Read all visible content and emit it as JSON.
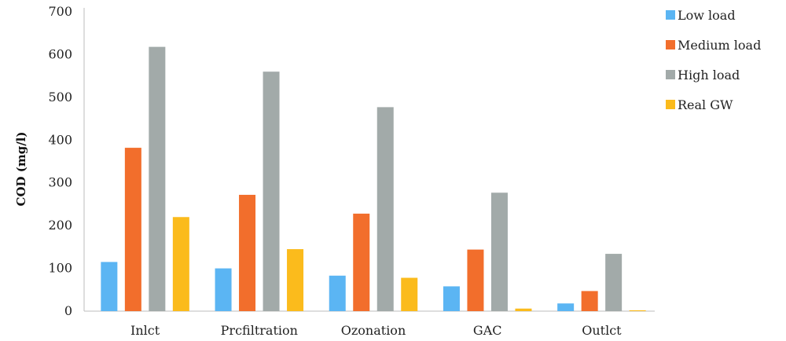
{
  "chart_data": {
    "type": "bar",
    "title": "",
    "xlabel": "",
    "ylabel": "COD (mg/l)",
    "ylim": [
      0,
      700
    ],
    "yticks": [
      "0",
      "100",
      "200",
      "300",
      "400",
      "500",
      "600",
      "700"
    ],
    "grid": false,
    "legend_position": "right",
    "categories": [
      "Inlct",
      "Prcfiltration",
      "Ozonation",
      "GAC",
      "Outlct"
    ],
    "series": [
      {
        "name": "Low load",
        "color": "#5BB5F3",
        "values": [
          115,
          100,
          83,
          58,
          18
        ]
      },
      {
        "name": "Medium load",
        "color": "#F26E2C",
        "values": [
          382,
          272,
          228,
          144,
          47
        ]
      },
      {
        "name": "High load",
        "color": "#A2AAA9",
        "values": [
          618,
          560,
          477,
          277,
          134
        ]
      },
      {
        "name": "Real GW",
        "color": "#FBBB1C",
        "values": [
          220,
          145,
          78,
          6,
          2
        ]
      }
    ]
  }
}
